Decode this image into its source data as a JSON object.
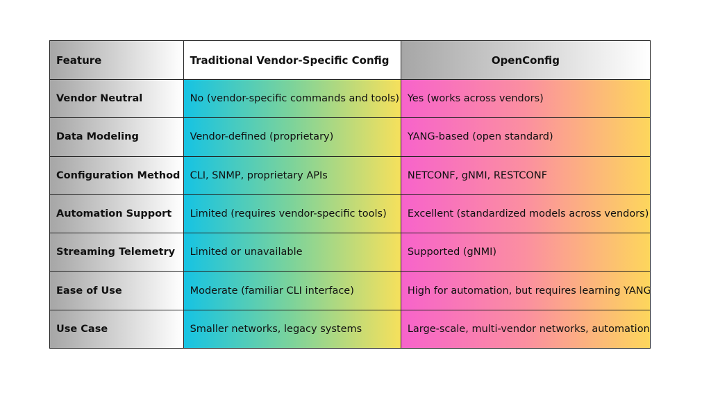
{
  "table": {
    "header": [
      "Feature",
      "Traditional Vendor-Specific Config",
      "OpenConfig"
    ],
    "rows": [
      [
        "Vendor Neutral",
        "No (vendor-specific commands and tools)",
        "Yes (works across vendors)"
      ],
      [
        "Data Modeling",
        "Vendor-defined (proprietary)",
        "YANG-based (open standard)"
      ],
      [
        "Configuration Method",
        "CLI, SNMP, proprietary APIs",
        "NETCONF, gNMI, RESTCONF"
      ],
      [
        "Automation Support",
        "Limited (requires vendor-specific tools)",
        "Excellent (standardized models across vendors)"
      ],
      [
        "Streaming Telemetry",
        "Limited or unavailable",
        "Supported (gNMI)"
      ],
      [
        "Ease of Use",
        "Moderate (familiar CLI interface)",
        "High for automation, but requires learning YANG"
      ],
      [
        "Use Case",
        "Smaller networks, legacy systems",
        "Large-scale, multi-vendor networks, automation"
      ]
    ]
  }
}
